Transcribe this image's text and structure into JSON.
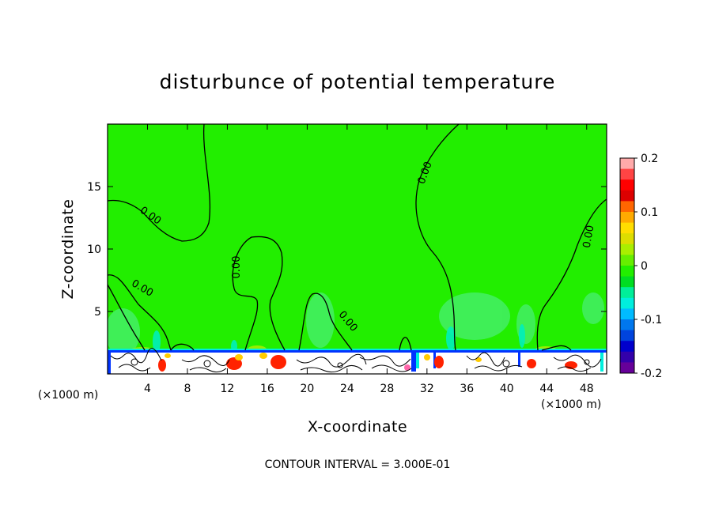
{
  "chart_data": {
    "type": "heatmap",
    "title": "disturbunce of potential temperature",
    "xlabel": "X-coordinate",
    "ylabel": "Z-coordinate",
    "x_unit": "(×1000 m)",
    "y_unit": "(×1000 m)",
    "xlim": [
      0,
      50
    ],
    "ylim": [
      0,
      20
    ],
    "x_ticks": [
      4,
      8,
      12,
      16,
      20,
      24,
      28,
      32,
      36,
      40,
      44,
      48
    ],
    "y_ticks": [
      5,
      10,
      15
    ],
    "colorbar": {
      "range": [
        -0.2,
        0.2
      ],
      "tick_values": [
        0.2,
        0.1,
        0,
        -0.1,
        -0.2
      ],
      "tick_labels": [
        "0.2",
        "0.1",
        "0",
        "-0.1",
        "-0.2"
      ],
      "colors": [
        "#ffaaaa",
        "#ff4444",
        "#ff0000",
        "#dd0000",
        "#ff6600",
        "#ffaa00",
        "#ffdd00",
        "#dddd00",
        "#aaee00",
        "#66ee00",
        "#22ee00",
        "#00dd22",
        "#00ee99",
        "#00eedd",
        "#00bbff",
        "#0077ee",
        "#0044dd",
        "#0000cc",
        "#3300aa",
        "#660099"
      ]
    },
    "background_value": 0.0,
    "contour_level": 0.0,
    "contour_labels": [
      "0.00",
      "0.00",
      "0.00",
      "0.00",
      "0.00",
      "0.00",
      "0.00"
    ],
    "contour_interval_text": "CONTOUR INTERVAL = 3.000E-01",
    "colors": {
      "field": "#22ee00",
      "cool_patch": "#44ee66",
      "contour": "#000000"
    }
  }
}
